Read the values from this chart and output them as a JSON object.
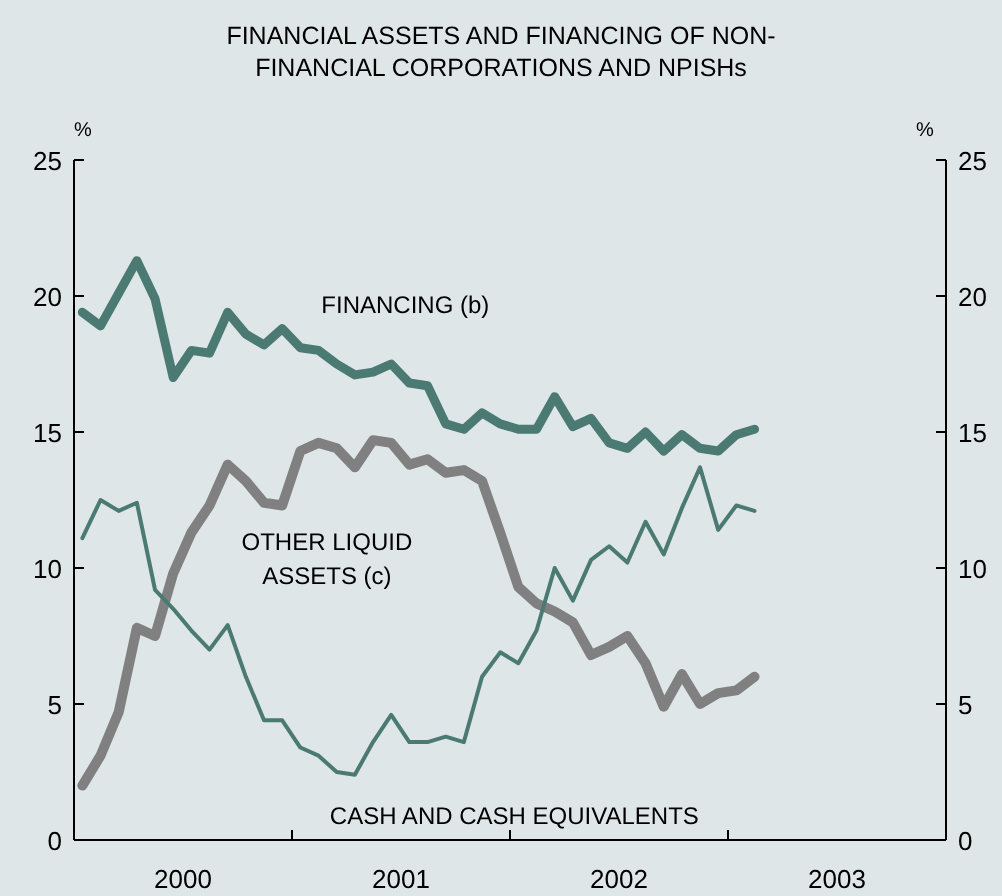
{
  "chart_data": {
    "type": "line",
    "title": "FINANCIAL ASSETS AND FINANCING OF NON-FINANCIAL CORPORATIONS AND NPISHs",
    "ylabel": "%",
    "y2label": "%",
    "x": [
      "2000-01-15",
      "2000-02-15",
      "2000-03-15",
      "2000-04-15",
      "2000-05-15",
      "2000-06-15",
      "2000-07-15",
      "2000-08-15",
      "2000-09-15",
      "2000-10-15",
      "2000-11-15",
      "2000-12-15",
      "2001-01-15",
      "2001-02-15",
      "2001-03-15",
      "2001-04-15",
      "2001-05-15",
      "2001-06-15",
      "2001-07-15",
      "2001-08-15",
      "2001-09-15",
      "2001-10-15",
      "2001-11-15",
      "2001-12-15",
      "2002-01-15",
      "2002-02-15",
      "2002-03-15",
      "2002-04-15",
      "2002-05-15",
      "2002-06-15",
      "2002-07-15",
      "2002-08-15",
      "2002-09-15",
      "2002-10-15",
      "2002-11-15",
      "2002-12-15",
      "2003-01-15",
      "2003-02-15"
    ],
    "series": [
      {
        "name": "FINANCING (b)",
        "color": "#4b7a73",
        "values": [
          19.4,
          18.9,
          20.1,
          21.3,
          19.9,
          17.0,
          18.0,
          17.9,
          19.4,
          18.6,
          18.2,
          18.8,
          18.1,
          18.0,
          17.5,
          17.1,
          17.2,
          17.5,
          16.8,
          16.7,
          15.3,
          15.1,
          15.7,
          15.3,
          15.1,
          15.1,
          16.3,
          15.2,
          15.5,
          14.6,
          14.4,
          15.0,
          14.3,
          14.9,
          14.4,
          14.3,
          14.9,
          15.1
        ]
      },
      {
        "name": "OTHER LIQUID ASSETS (c)",
        "color": "#808080",
        "values": [
          2.0,
          3.1,
          4.7,
          7.8,
          7.5,
          9.8,
          11.3,
          12.3,
          13.8,
          13.2,
          12.4,
          12.3,
          14.3,
          14.6,
          14.4,
          13.7,
          14.7,
          14.6,
          13.8,
          14.0,
          13.5,
          13.6,
          13.2,
          11.3,
          9.3,
          8.7,
          8.4,
          8.0,
          6.8,
          7.1,
          7.5,
          6.5,
          4.9,
          6.1,
          5.0,
          5.4,
          5.5,
          6.0
        ]
      },
      {
        "name": "CASH AND CASH EQUIVALENTS",
        "color": "#4b7a73",
        "values": [
          11.1,
          12.5,
          12.1,
          12.4,
          9.2,
          8.5,
          7.7,
          7.0,
          7.9,
          6.0,
          4.4,
          4.4,
          3.4,
          3.1,
          2.5,
          2.4,
          3.6,
          4.6,
          3.6,
          3.6,
          3.8,
          3.6,
          6.0,
          6.9,
          6.5,
          7.7,
          10.0,
          8.8,
          10.3,
          10.8,
          10.2,
          11.7,
          10.5,
          12.2,
          13.7,
          11.4,
          12.3,
          12.1
        ]
      }
    ],
    "xlim": [
      "2000-01-01",
      "2004-01-01"
    ],
    "xticks": [
      {
        "value": "2000-01-01",
        "label": null
      },
      {
        "value": "2000-07-01",
        "label": "2000"
      },
      {
        "value": "2001-01-01",
        "label": null
      },
      {
        "value": "2001-07-01",
        "label": "2001"
      },
      {
        "value": "2002-01-01",
        "label": null
      },
      {
        "value": "2002-07-01",
        "label": "2002"
      },
      {
        "value": "2003-01-01",
        "label": null
      },
      {
        "value": "2003-07-01",
        "label": "2003"
      },
      {
        "value": "2004-01-01",
        "label": null
      }
    ],
    "ylim": [
      0,
      25
    ],
    "yticks": [
      0,
      5,
      10,
      15,
      20,
      25
    ],
    "y2lim": [
      0,
      25
    ],
    "y2ticks": [
      0,
      5,
      10,
      15,
      20,
      25
    ],
    "marker": "none",
    "line_style": "solid"
  }
}
